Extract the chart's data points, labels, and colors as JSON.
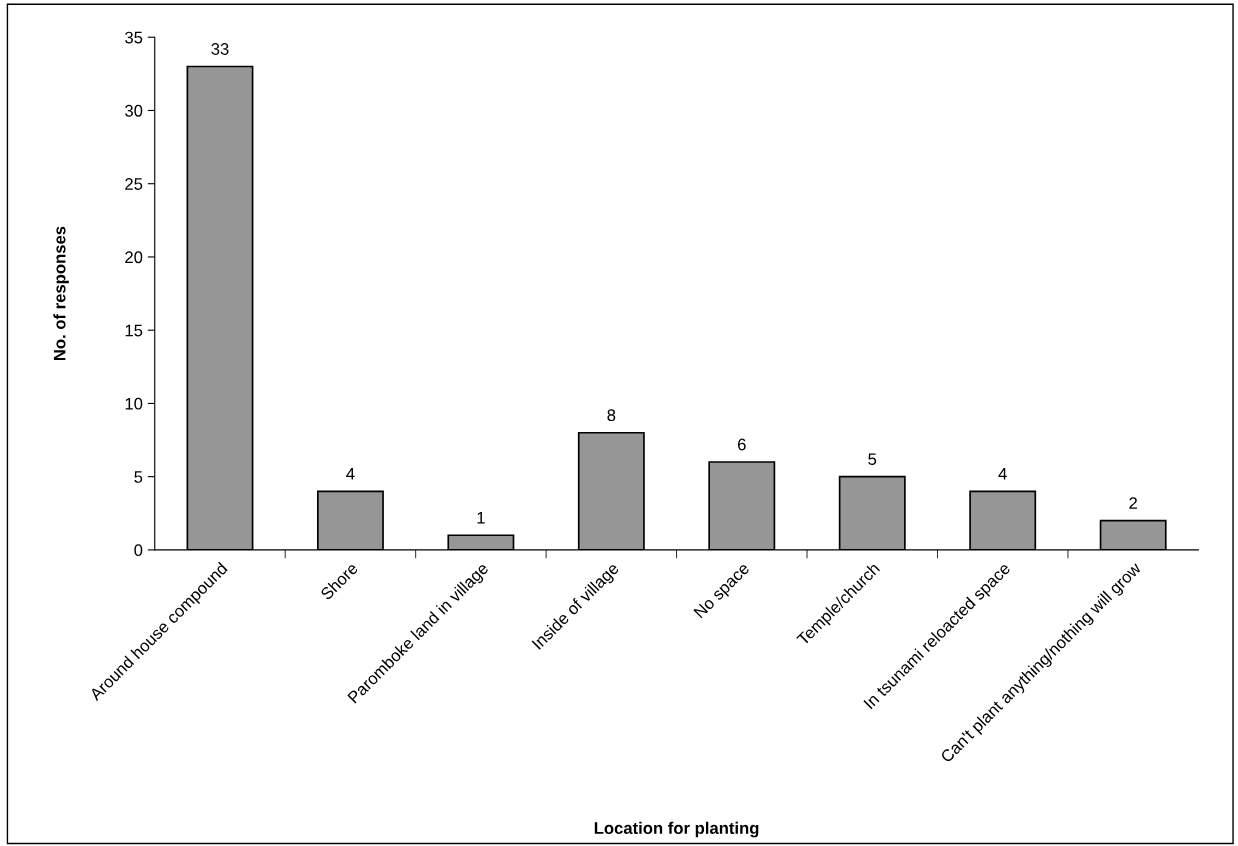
{
  "chart_data": {
    "type": "bar",
    "xlabel": "Location for planting",
    "ylabel": "No. of responses",
    "categories": [
      "Around house compound",
      "Shore",
      "Paromboke land in village",
      "Inside of village",
      "No space",
      "Temple/church",
      "In tsunami reloacted space",
      "Can't plant anything/nothing will grow"
    ],
    "values": [
      33,
      4,
      1,
      8,
      6,
      5,
      4,
      2
    ],
    "color": "#969696",
    "ylim": [
      0,
      35
    ],
    "yticks": [
      0,
      5,
      10,
      15,
      20,
      25,
      30,
      35
    ],
    "data_labels": true,
    "grid": false,
    "legend": false
  }
}
